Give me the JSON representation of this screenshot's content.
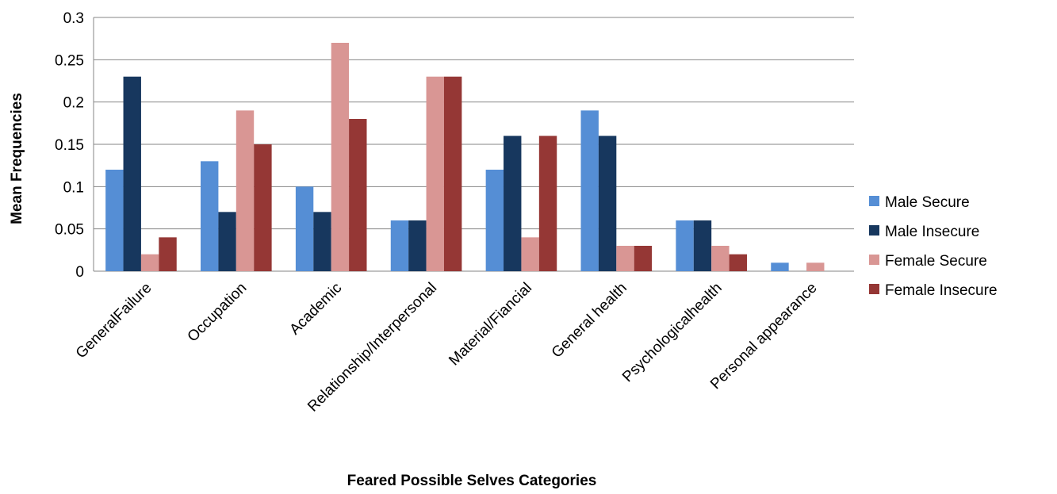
{
  "chart_data": {
    "type": "bar",
    "title": "",
    "xlabel": "Feared Possible Selves Categories",
    "ylabel": "Mean Frequencies",
    "ylim": [
      0,
      0.3
    ],
    "yticks": [
      "0",
      "0.05",
      "0.1",
      "0.15",
      "0.2",
      "0.25",
      "0.3"
    ],
    "grid": true,
    "legend": "right",
    "categories": [
      "GeneralFailure",
      "Occupation",
      "Academic",
      "Relationship/Interpersonal",
      "Material/Fiancial",
      "General health",
      "Psychologicalhealth",
      "Personal appearance"
    ],
    "series": [
      {
        "name": "Male Secure",
        "color": "#558ED5",
        "values": [
          0.12,
          0.13,
          0.1,
          0.06,
          0.12,
          0.19,
          0.06,
          0.01
        ]
      },
      {
        "name": "Male Insecure",
        "color": "#17375E",
        "values": [
          0.23,
          0.07,
          0.07,
          0.06,
          0.16,
          0.16,
          0.06,
          0
        ]
      },
      {
        "name": "Female Secure",
        "color": "#D99694",
        "values": [
          0.02,
          0.19,
          0.27,
          0.23,
          0.04,
          0.03,
          0.03,
          0.01
        ]
      },
      {
        "name": "Female Insecure",
        "color": "#953735",
        "values": [
          0.04,
          0.15,
          0.18,
          0.23,
          0.16,
          0.03,
          0.02,
          0
        ]
      }
    ]
  }
}
